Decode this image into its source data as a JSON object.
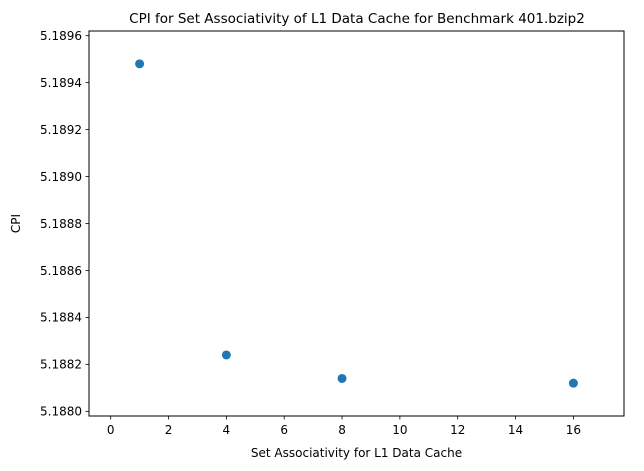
{
  "chart_data": {
    "type": "scatter",
    "title": "CPI for Set Associativity of L1 Data Cache for Benchmark 401.bzip2",
    "xlabel": "Set Associativity for L1 Data Cache",
    "ylabel": "CPI",
    "xlim": [
      -0.75,
      17.75
    ],
    "ylim": [
      5.18798,
      5.18962
    ],
    "xticks": [
      0,
      2,
      4,
      6,
      8,
      10,
      12,
      14,
      16
    ],
    "yticks": [
      5.188,
      5.1882,
      5.1884,
      5.1886,
      5.1888,
      5.189,
      5.1892,
      5.1894,
      5.1896
    ],
    "ytick_labels": [
      "5.1880",
      "5.1882",
      "5.1884",
      "5.1886",
      "5.1888",
      "5.1890",
      "5.1892",
      "5.1894",
      "5.1896"
    ],
    "grid": false,
    "color": "#1f77b4",
    "x": [
      1,
      4,
      8,
      16
    ],
    "y": [
      5.18948,
      5.18824,
      5.18814,
      5.18812
    ]
  }
}
